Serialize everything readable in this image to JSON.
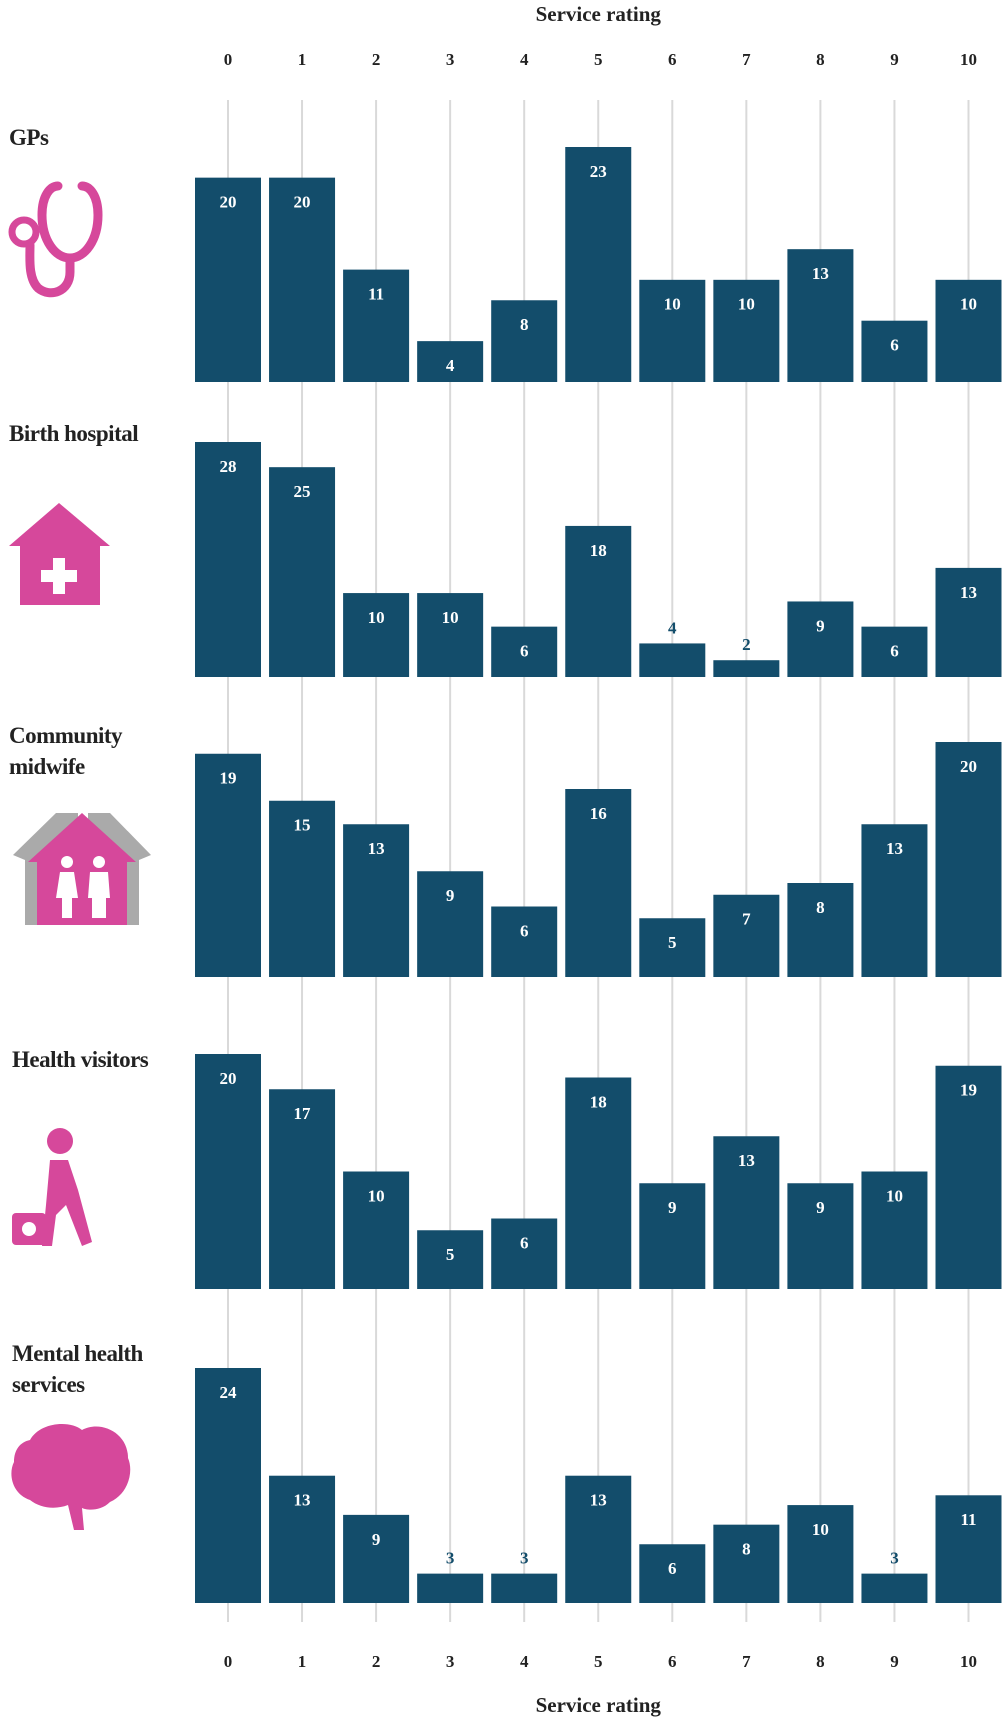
{
  "chart_data": [
    {
      "type": "bar",
      "title": "GPs",
      "x_label": "Service rating",
      "categories": [
        0,
        1,
        2,
        3,
        4,
        5,
        6,
        7,
        8,
        9,
        10
      ],
      "values": [
        20,
        20,
        11,
        4,
        8,
        23,
        10,
        10,
        13,
        6,
        10
      ],
      "color": "#134d6b"
    },
    {
      "type": "bar",
      "title": "Birth hospital",
      "categories": [
        0,
        1,
        2,
        3,
        4,
        5,
        6,
        7,
        8,
        9,
        10
      ],
      "values": [
        28,
        25,
        10,
        10,
        6,
        18,
        4,
        2,
        9,
        6,
        13
      ],
      "color": "#134d6b"
    },
    {
      "type": "bar",
      "title": "Community midwife",
      "categories": [
        0,
        1,
        2,
        3,
        4,
        5,
        6,
        7,
        8,
        9,
        10
      ],
      "values": [
        19,
        15,
        13,
        9,
        6,
        16,
        5,
        7,
        8,
        13,
        20
      ],
      "color": "#134d6b"
    },
    {
      "type": "bar",
      "title": "Health visitors",
      "categories": [
        0,
        1,
        2,
        3,
        4,
        5,
        6,
        7,
        8,
        9,
        10
      ],
      "values": [
        20,
        17,
        10,
        5,
        6,
        18,
        9,
        13,
        9,
        10,
        19
      ],
      "color": "#134d6b"
    },
    {
      "type": "bar",
      "title": "Mental health services",
      "x_label": "Service rating",
      "categories": [
        0,
        1,
        2,
        3,
        4,
        5,
        6,
        7,
        8,
        9,
        10
      ],
      "values": [
        24,
        13,
        9,
        3,
        3,
        13,
        6,
        8,
        10,
        3,
        11
      ],
      "color": "#134d6b"
    }
  ]
}
